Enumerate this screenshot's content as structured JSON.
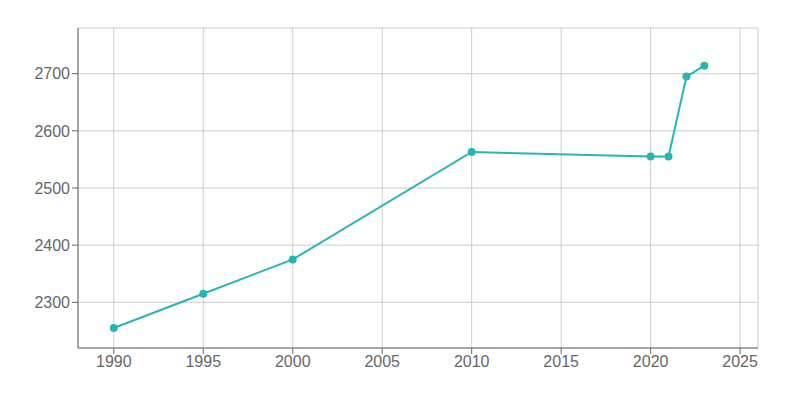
{
  "chart_data": {
    "type": "line",
    "x": [
      1990,
      1995,
      2000,
      2010,
      2020,
      2021,
      2022,
      2023
    ],
    "values": [
      2255,
      2315,
      2375,
      2563,
      2555,
      2555,
      2695,
      2714
    ],
    "color": "#2ab5b5",
    "xlim": [
      1988,
      2026
    ],
    "ylim": [
      2220,
      2780
    ],
    "xticks": [
      1990,
      1995,
      2000,
      2005,
      2010,
      2015,
      2020,
      2025
    ],
    "yticks": [
      2300,
      2400,
      2500,
      2600,
      2700
    ],
    "grid": true,
    "marker": "circle"
  }
}
